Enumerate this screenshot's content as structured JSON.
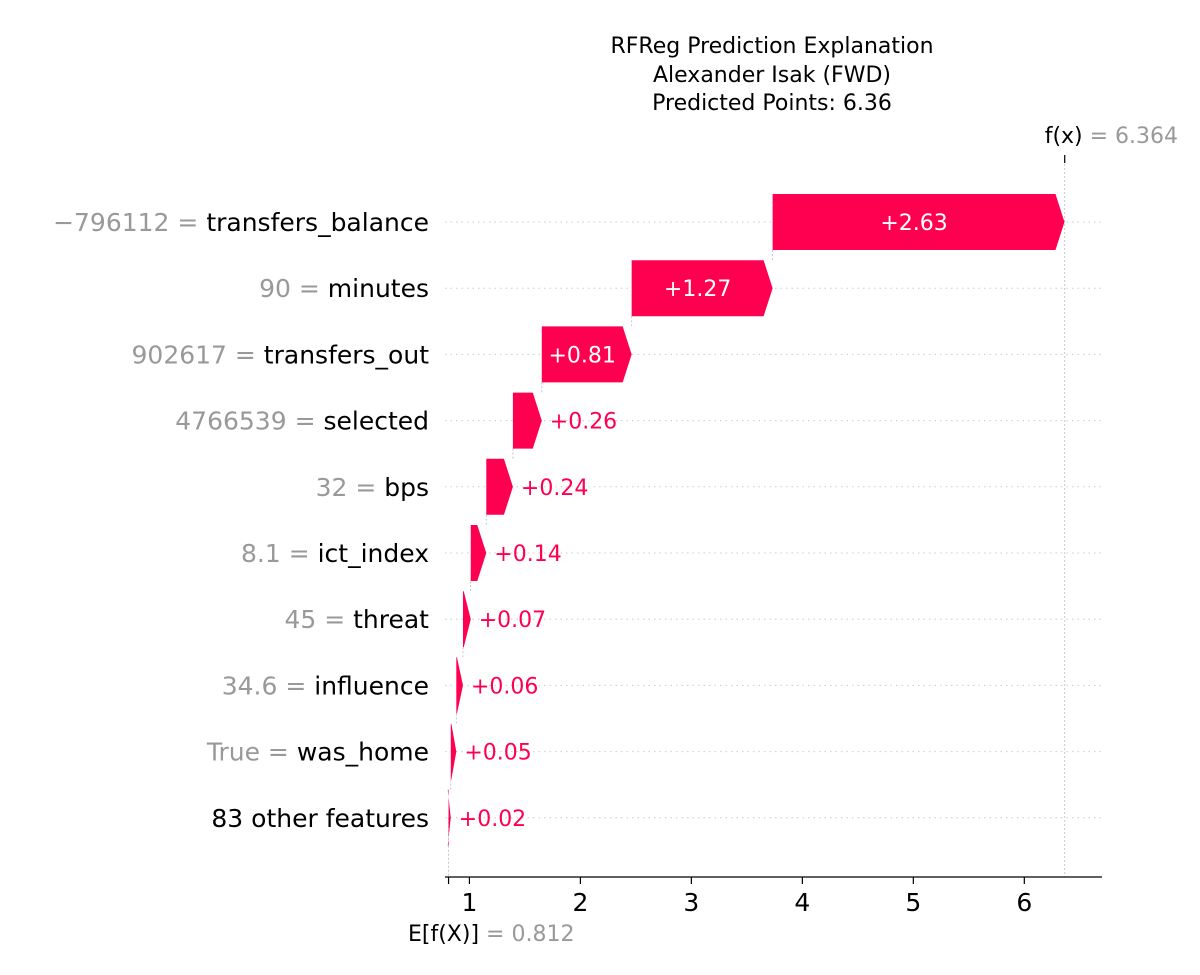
{
  "chart_data": {
    "type": "waterfall",
    "title": [
      "RFReg Prediction Explanation",
      "Alexander Isak (FWD)",
      "Predicted Points: 6.36"
    ],
    "base_value": 0.812,
    "base_value_label": "0.812",
    "base_label": "E[f(X)]",
    "output_value": 6.364,
    "output_value_label": "6.364",
    "output_label": "f(x)",
    "xlim": [
      0.78,
      6.7
    ],
    "x_ticks": [
      1,
      2,
      3,
      4,
      5,
      6
    ],
    "positive_color": "#ff0051",
    "features": [
      {
        "value_text": "−796112",
        "name": "transfers_balance",
        "contribution": 2.63,
        "label": "+2.63"
      },
      {
        "value_text": "90",
        "name": "minutes",
        "contribution": 1.27,
        "label": "+1.27"
      },
      {
        "value_text": "902617",
        "name": "transfers_out",
        "contribution": 0.81,
        "label": "+0.81"
      },
      {
        "value_text": "4766539",
        "name": "selected",
        "contribution": 0.26,
        "label": "+0.26"
      },
      {
        "value_text": "32",
        "name": "bps",
        "contribution": 0.24,
        "label": "+0.24"
      },
      {
        "value_text": "8.1",
        "name": "ict_index",
        "contribution": 0.14,
        "label": "+0.14"
      },
      {
        "value_text": "45",
        "name": "threat",
        "contribution": 0.07,
        "label": "+0.07"
      },
      {
        "value_text": "34.6",
        "name": "influence",
        "contribution": 0.06,
        "label": "+0.06"
      },
      {
        "value_text": "True",
        "name": "was_home",
        "contribution": 0.05,
        "label": "+0.05"
      },
      {
        "value_text": "",
        "name": "83 other features",
        "contribution": 0.02,
        "label": "+0.02"
      }
    ]
  }
}
